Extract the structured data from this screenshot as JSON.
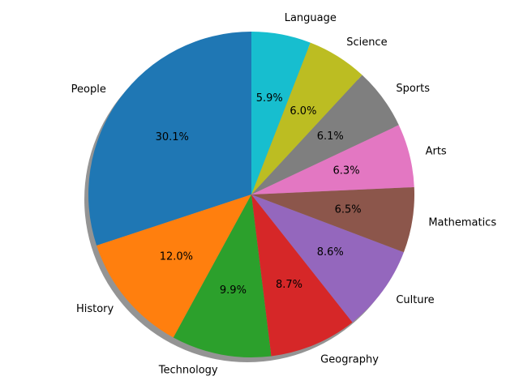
{
  "chart_data": {
    "type": "pie",
    "title": "",
    "start_angle_deg": 90,
    "direction": "counterclockwise",
    "shadow": true,
    "slices": [
      {
        "label": "People",
        "value": 30.1,
        "pct_text": "30.1%",
        "color": "#1f77b4"
      },
      {
        "label": "History",
        "value": 12.0,
        "pct_text": "12.0%",
        "color": "#ff7f0e"
      },
      {
        "label": "Technology",
        "value": 9.9,
        "pct_text": "9.9%",
        "color": "#2ca02c"
      },
      {
        "label": "Geography",
        "value": 8.7,
        "pct_text": "8.7%",
        "color": "#d62728"
      },
      {
        "label": "Culture",
        "value": 8.6,
        "pct_text": "8.6%",
        "color": "#9467bd"
      },
      {
        "label": "Mathematics",
        "value": 6.5,
        "pct_text": "6.5%",
        "color": "#8c564b"
      },
      {
        "label": "Arts",
        "value": 6.3,
        "pct_text": "6.3%",
        "color": "#e377c2"
      },
      {
        "label": "Sports",
        "value": 6.1,
        "pct_text": "6.1%",
        "color": "#7f7f7f"
      },
      {
        "label": "Science",
        "value": 6.0,
        "pct_text": "6.0%",
        "color": "#bcbd22"
      },
      {
        "label": "Language",
        "value": 5.9,
        "pct_text": "5.9%",
        "color": "#17becf"
      }
    ]
  }
}
